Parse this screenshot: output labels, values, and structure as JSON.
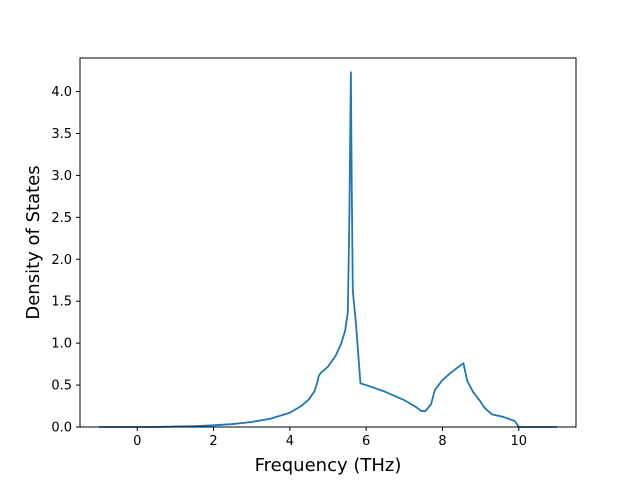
{
  "chart_data": {
    "type": "line",
    "xlabel": "Frequency (THz)",
    "ylabel": "Density of States",
    "xlim": [
      -1.5,
      11.5
    ],
    "ylim": [
      0.0,
      4.4
    ],
    "x_ticks": [
      0,
      2,
      4,
      6,
      8,
      10
    ],
    "y_ticks": [
      0.0,
      0.5,
      1.0,
      1.5,
      2.0,
      2.5,
      3.0,
      3.5,
      4.0
    ],
    "x_tick_labels": [
      "0",
      "2",
      "4",
      "6",
      "8",
      "10"
    ],
    "y_tick_labels": [
      "0.0",
      "0.5",
      "1.0",
      "1.5",
      "2.0",
      "2.5",
      "3.0",
      "3.5",
      "4.0"
    ],
    "grid": false,
    "legend": "none",
    "series": [
      {
        "color": "#1f77b4",
        "x": [
          -1.0,
          0.0,
          0.5,
          1.0,
          1.5,
          2.0,
          2.5,
          3.0,
          3.5,
          4.0,
          4.3,
          4.5,
          4.65,
          4.72,
          4.75,
          4.8,
          5.0,
          5.2,
          5.35,
          5.45,
          5.52,
          5.56,
          5.6,
          5.62,
          5.65,
          5.72,
          5.78,
          5.85,
          6.0,
          6.5,
          7.0,
          7.3,
          7.45,
          7.55,
          7.7,
          7.8,
          8.0,
          8.2,
          8.4,
          8.55,
          8.65,
          8.8,
          9.0,
          9.1,
          9.3,
          9.6,
          9.9,
          10.0,
          11.0
        ],
        "y": [
          0.0,
          0.0,
          0.0,
          0.005,
          0.01,
          0.02,
          0.035,
          0.06,
          0.1,
          0.17,
          0.25,
          0.33,
          0.43,
          0.53,
          0.6,
          0.64,
          0.72,
          0.85,
          1.0,
          1.15,
          1.37,
          2.5,
          4.23,
          3.0,
          1.62,
          1.3,
          0.95,
          0.52,
          0.5,
          0.42,
          0.32,
          0.24,
          0.19,
          0.19,
          0.27,
          0.44,
          0.56,
          0.64,
          0.71,
          0.76,
          0.55,
          0.42,
          0.3,
          0.23,
          0.15,
          0.12,
          0.07,
          0.0,
          0.0
        ]
      }
    ]
  }
}
